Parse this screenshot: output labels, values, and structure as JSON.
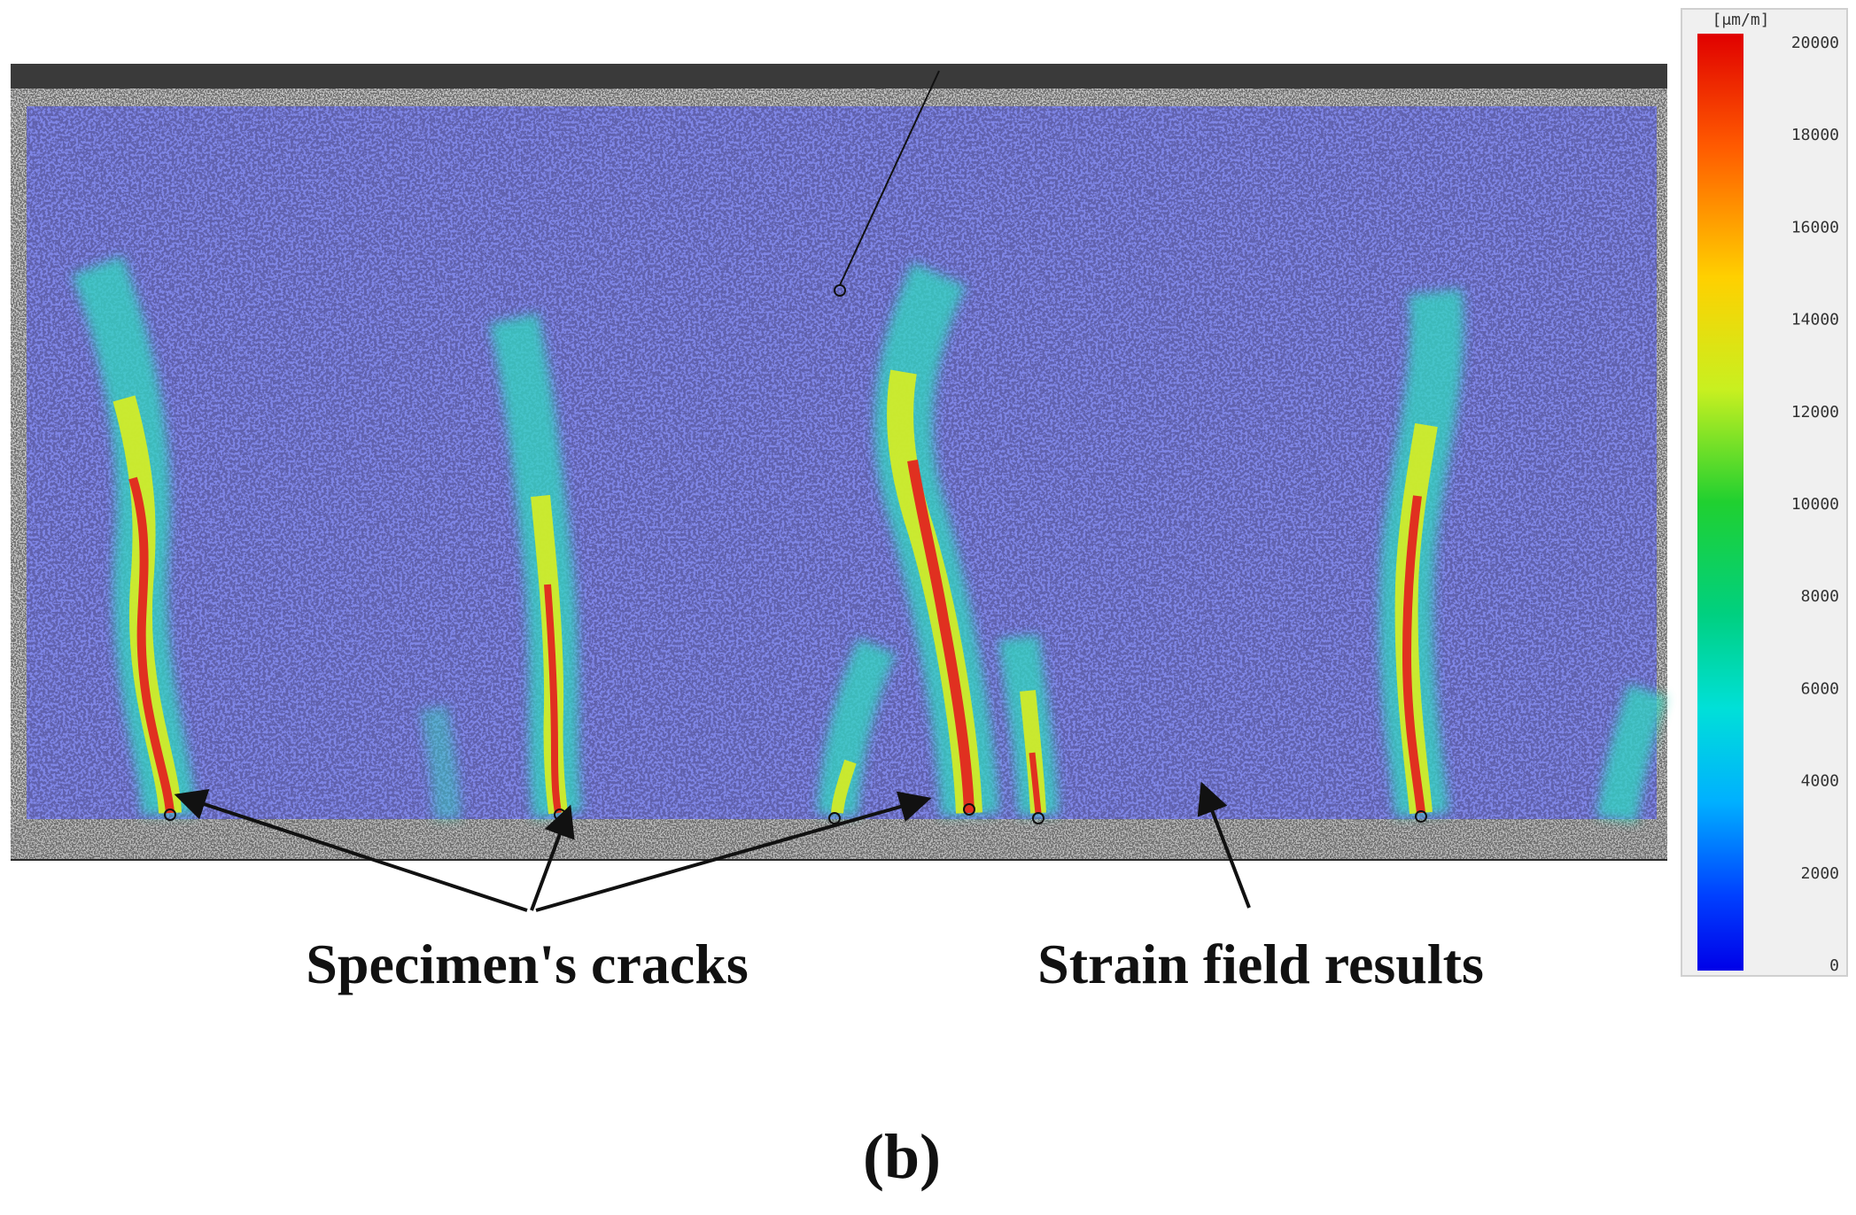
{
  "annotations": {
    "cracks_label": "Specimen's cracks",
    "strain_label": "Strain field results"
  },
  "subfigure_label": "(b)",
  "colorbar": {
    "unit": "[μm/m]",
    "ticks": [
      "20000",
      "18000",
      "16000",
      "14000",
      "12000",
      "10000",
      "8000",
      "6000",
      "4000",
      "2000",
      "0"
    ],
    "colors": [
      "#d40000",
      "#ff6a00",
      "#ffd000",
      "#d8ff20",
      "#30e030",
      "#00d070",
      "#00d8c8",
      "#00b8ff",
      "#0050ff",
      "#0000ee"
    ]
  },
  "colors": {
    "overlay": "#7f86e6",
    "frame": "#c8c8c8",
    "speckle": "#1a1a5a"
  }
}
